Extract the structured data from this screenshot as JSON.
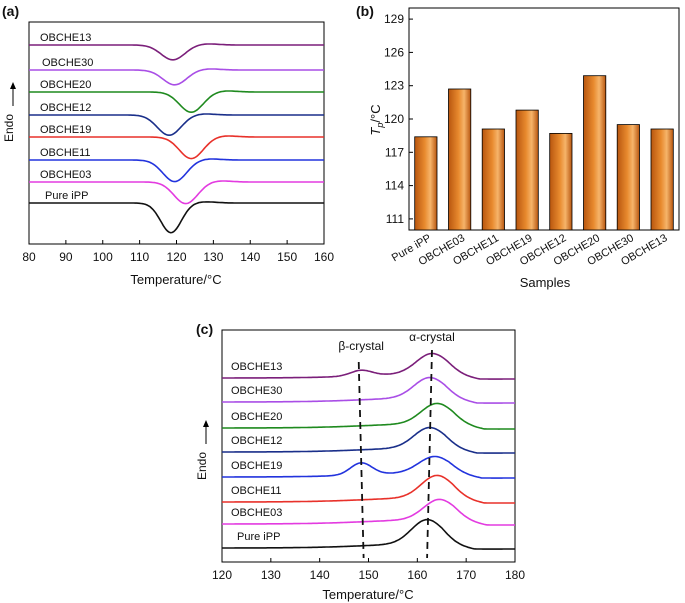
{
  "chart_data": [
    {
      "panel": "(a)",
      "type": "line",
      "title": "",
      "xlabel": "Temperature/°C",
      "ylabel": "Endo",
      "xlim": [
        80,
        160
      ],
      "xticks": [
        80,
        90,
        100,
        110,
        120,
        130,
        140,
        150,
        160
      ],
      "series": [
        {
          "name": "OBCHE13",
          "color": "#7b1f7a",
          "peak": 119,
          "depth": 0.55,
          "width": 3.2
        },
        {
          "name": "OBCHE30",
          "color": "#a94ee6",
          "peak": 119.5,
          "depth": 0.55,
          "width": 3.2
        },
        {
          "name": "OBCHE20",
          "color": "#1f8a1f",
          "peak": 124,
          "depth": 0.75,
          "width": 3.2
        },
        {
          "name": "OBCHE12",
          "color": "#1a2f8a",
          "peak": 118,
          "depth": 0.75,
          "width": 3.2
        },
        {
          "name": "OBCHE19",
          "color": "#e8312a",
          "peak": 124,
          "depth": 0.8,
          "width": 3.2
        },
        {
          "name": "OBCHE11",
          "color": "#2233dd",
          "peak": 119.5,
          "depth": 0.8,
          "width": 3.2
        },
        {
          "name": "OBCHE03",
          "color": "#e33be0",
          "peak": 122.5,
          "depth": 0.8,
          "width": 3.2
        },
        {
          "name": "Pure iPP",
          "color": "#111111",
          "peak": 118.5,
          "depth": 1.1,
          "width": 2.8
        }
      ]
    },
    {
      "panel": "(b)",
      "type": "bar",
      "title": "",
      "xlabel": "Samples",
      "ylabel_main": "T",
      "ylabel_sub": "p",
      "ylabel_unit": "/°C",
      "ylim": [
        110,
        130
      ],
      "yticks": [
        111,
        114,
        117,
        120,
        123,
        126,
        129
      ],
      "categories": [
        "Pure iPP",
        "OBCHE03",
        "OBCHE11",
        "OBCHE19",
        "OBCHE12",
        "OBCHE20",
        "OBCHE30",
        "OBCHE13"
      ],
      "values": [
        118.4,
        122.7,
        119.1,
        120.8,
        118.7,
        123.9,
        119.5,
        119.1
      ],
      "bar_color": "#e88a2e"
    },
    {
      "panel": "(c)",
      "type": "line",
      "title": "",
      "xlabel": "Temperature/°C",
      "ylabel": "Endo",
      "xlim": [
        120,
        180
      ],
      "xticks": [
        120,
        130,
        140,
        150,
        160,
        170,
        180
      ],
      "annotations": [
        {
          "text": "β-crystal",
          "x": 148.5
        },
        {
          "text": "α-crystal",
          "x": 163
        }
      ],
      "series": [
        {
          "name": "OBCHE13",
          "color": "#7b1f7a",
          "alpha_peak": 163,
          "alpha_height": 1.0,
          "beta_height": 0.35
        },
        {
          "name": "OBCHE30",
          "color": "#a94ee6",
          "alpha_peak": 162.5,
          "alpha_height": 1.0,
          "beta_height": 0.0
        },
        {
          "name": "OBCHE20",
          "color": "#1f8a1f",
          "alpha_peak": 164,
          "alpha_height": 1.0,
          "beta_height": 0.0
        },
        {
          "name": "OBCHE12",
          "color": "#1a2f8a",
          "alpha_peak": 162.5,
          "alpha_height": 1.0,
          "beta_height": 0.0
        },
        {
          "name": "OBCHE19",
          "color": "#2233dd",
          "alpha_peak": 163.5,
          "alpha_height": 0.8,
          "beta_height": 0.75
        },
        {
          "name": "OBCHE11",
          "color": "#e8312a",
          "alpha_peak": 164,
          "alpha_height": 1.1,
          "beta_height": 0.0
        },
        {
          "name": "OBCHE03",
          "color": "#e33be0",
          "alpha_peak": 164.5,
          "alpha_height": 1.0,
          "beta_height": 0.0
        },
        {
          "name": "Pure iPP",
          "color": "#111111",
          "alpha_peak": 162,
          "alpha_height": 1.2,
          "beta_height": 0.0
        }
      ]
    }
  ]
}
